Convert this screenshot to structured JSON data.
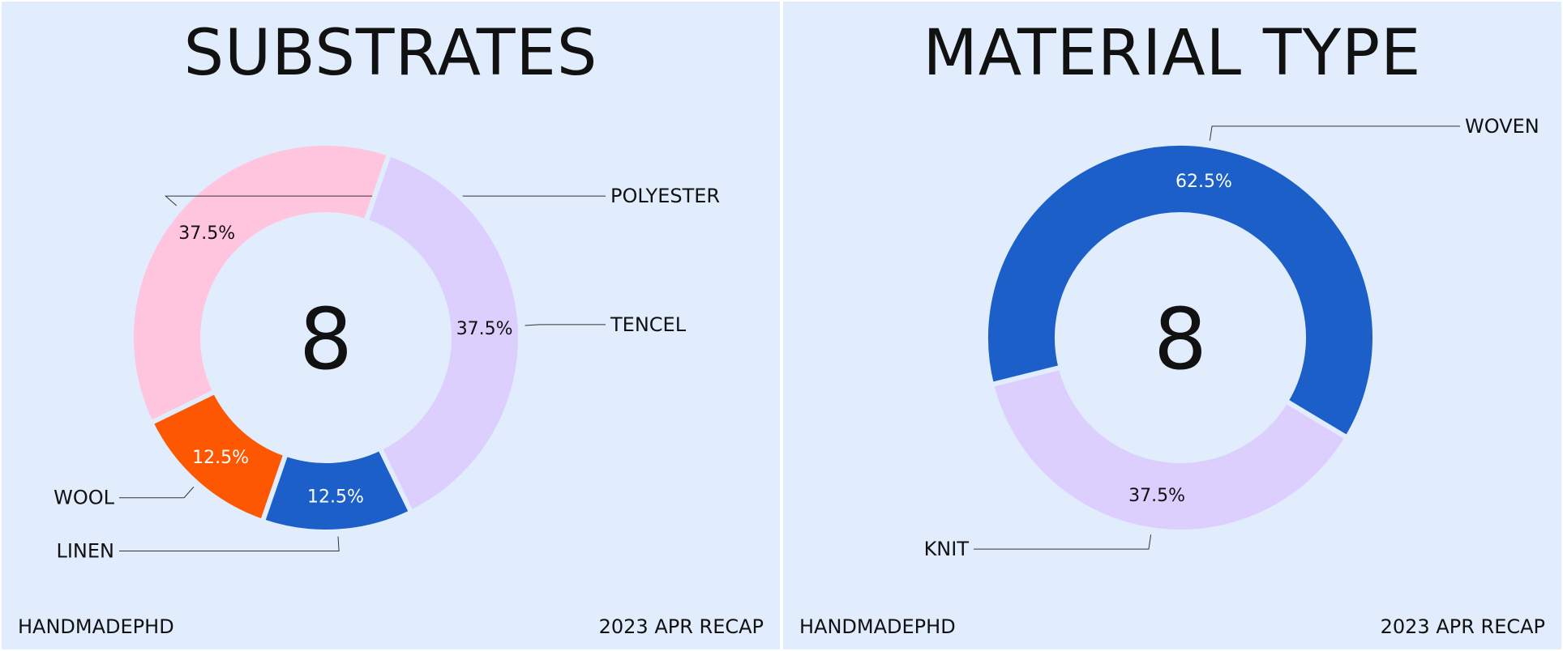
{
  "chart_data": [
    {
      "type": "pie",
      "title": "SUBSTRATES",
      "center_label": "8",
      "slices": [
        {
          "label": "POLYESTER",
          "value": 37.5,
          "value_label": "37.5%",
          "color": "#ffc5df",
          "text_color": "#111111"
        },
        {
          "label": "TENCEL",
          "value": 37.5,
          "value_label": "37.5%",
          "color": "#dccffe",
          "text_color": "#111111"
        },
        {
          "label": "LINEN",
          "value": 12.5,
          "value_label": "12.5%",
          "color": "#1c5fc9",
          "text_color": "#ffffff"
        },
        {
          "label": "WOOL",
          "value": 12.5,
          "value_label": "12.5%",
          "color": "#fe5702",
          "text_color": "#ffffff"
        }
      ],
      "footer_left": "HANDMADEPHD",
      "footer_right": "2023 APR RECAP"
    },
    {
      "type": "pie",
      "title": "MATERIAL TYPE",
      "center_label": "8",
      "slices": [
        {
          "label": "WOVEN",
          "value": 62.5,
          "value_label": "62.5%",
          "color": "#1c5fc9",
          "text_color": "#ffffff"
        },
        {
          "label": "KNIT",
          "value": 37.5,
          "value_label": "37.5%",
          "color": "#dccffe",
          "text_color": "#111111"
        }
      ],
      "footer_left": "HANDMADEPHD",
      "footer_right": "2023 APR RECAP"
    }
  ]
}
